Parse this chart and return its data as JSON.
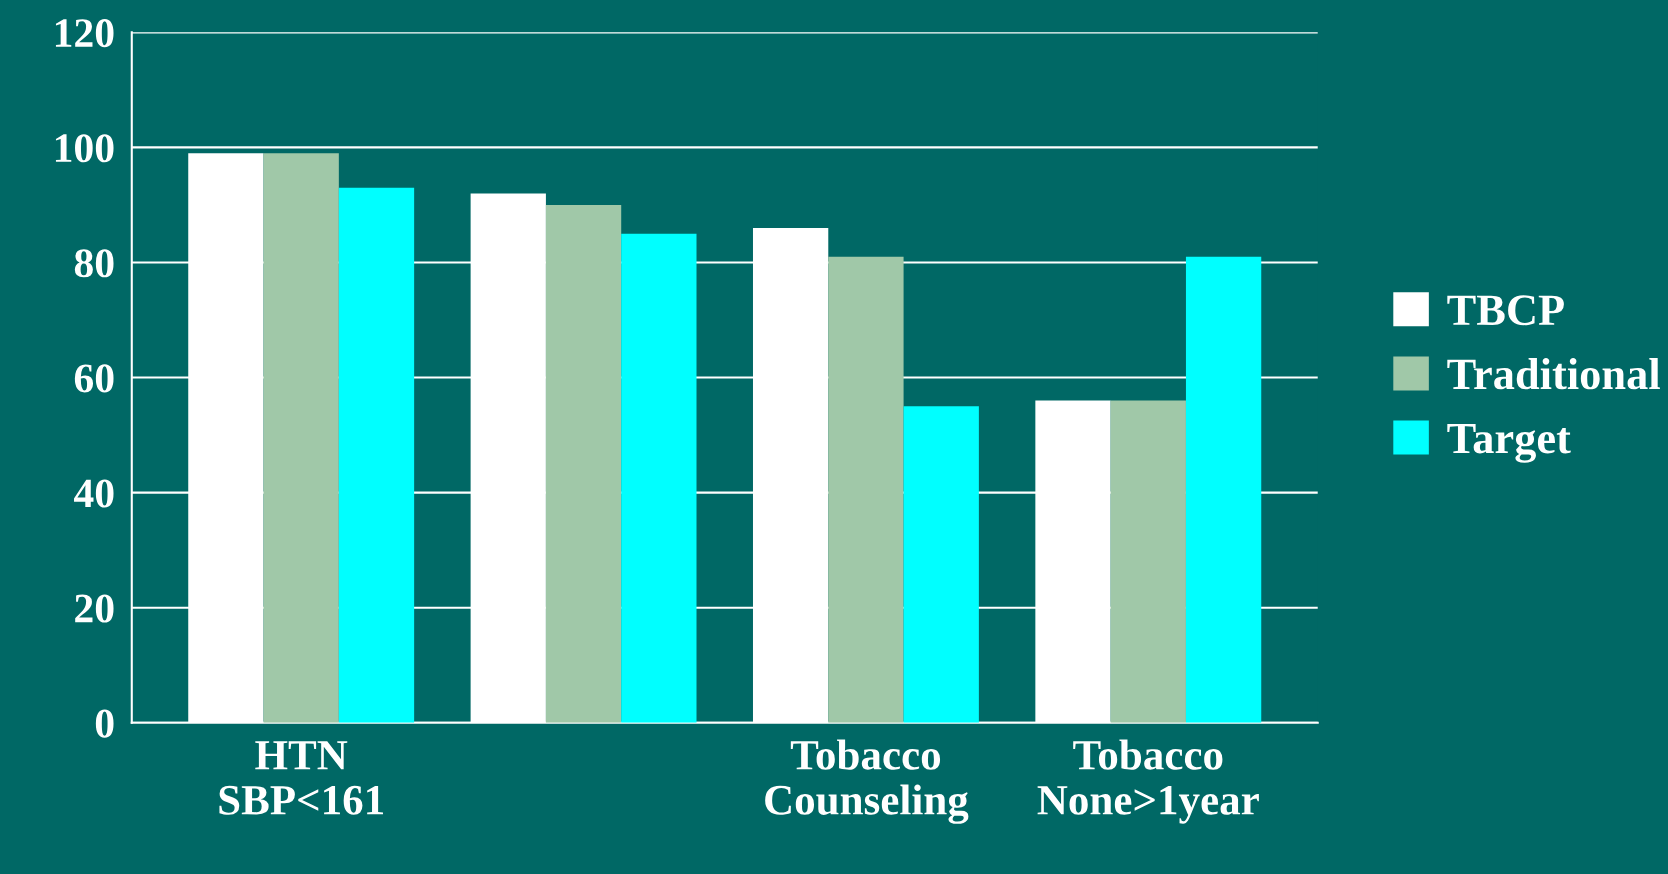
{
  "chart_data": {
    "type": "bar",
    "categories": [
      "HTN\nSBP<161",
      null,
      "Tobacco\nCounseling",
      "Tobacco\nNone>1year"
    ],
    "series": [
      {
        "name": "TBCP",
        "color": "#ffffff",
        "values": [
          99,
          92,
          86,
          56
        ]
      },
      {
        "name": "Traditional",
        "color": "#a0c8a8",
        "values": [
          99,
          90,
          81,
          56
        ]
      },
      {
        "name": "Target",
        "color": "#00ffff",
        "values": [
          93,
          85,
          55,
          81
        ]
      }
    ],
    "ylim": [
      0,
      120
    ],
    "yticks": [
      0,
      20,
      40,
      60,
      80,
      100,
      120
    ],
    "grid": "y",
    "legend": "right"
  }
}
